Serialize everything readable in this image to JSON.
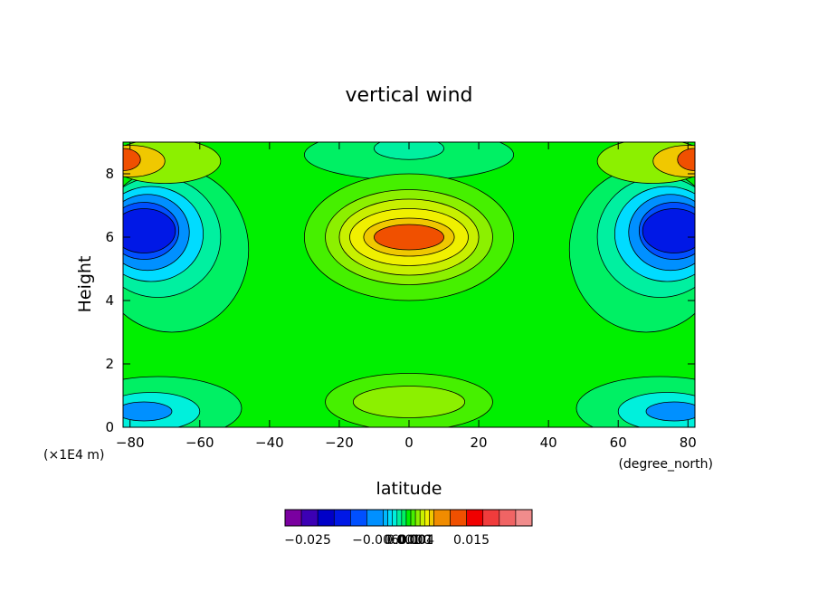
{
  "chart_data": {
    "type": "heatmap",
    "title": "vertical wind",
    "xlabel": "latitude",
    "ylabel": "Height",
    "x_units": "(degree_north)",
    "y_units": "(×1E4 m)",
    "xlim": [
      -82,
      82
    ],
    "ylim": [
      0,
      9
    ],
    "x_ticks": [
      -80,
      -60,
      -40,
      -20,
      0,
      20,
      40,
      60,
      80
    ],
    "y_ticks": [
      0,
      2,
      4,
      6,
      8
    ],
    "x_tick_labels": [
      "−80",
      "−60",
      "−40",
      "−20",
      "0",
      "20",
      "40",
      "60",
      "80"
    ],
    "y_tick_labels": [
      "0",
      "2",
      "4",
      "6",
      "8"
    ],
    "grid": false,
    "legend": "bottom",
    "colorbar": {
      "colors": [
        "#7a00a0",
        "#3c00b4",
        "#0000c8",
        "#0018e6",
        "#0050ff",
        "#0090ff",
        "#00b8ff",
        "#00dcff",
        "#00f0dc",
        "#00f0a0",
        "#00f064",
        "#00f000",
        "#46f000",
        "#8cf000",
        "#c8f000",
        "#f0f000",
        "#f0c800",
        "#f08c00",
        "#f05000",
        "#f00000",
        "#f03c3c",
        "#f06464",
        "#f08c8c"
      ],
      "tick_labels": [
        "−0.025",
        "−0.006",
        "0.004",
        "0.015"
      ],
      "overlap_labels": [
        "0.001",
        "0.0000",
        "0.001"
      ]
    },
    "features": [
      {
        "name": "deep minimum",
        "lat": -74,
        "height": 6.2,
        "value": -0.025
      },
      {
        "name": "deep minimum",
        "lat": 74,
        "height": 6.2,
        "value": -0.025
      },
      {
        "name": "maximum",
        "lat": 0,
        "height": 6.0,
        "value": 0.012
      },
      {
        "name": "maximum",
        "lat": -80,
        "height": 8.4,
        "value": 0.015
      },
      {
        "name": "maximum",
        "lat": 80,
        "height": 8.4,
        "value": 0.015
      },
      {
        "name": "weak minimum",
        "lat": -74,
        "height": 0.5,
        "value": -0.012
      },
      {
        "name": "weak minimum",
        "lat": 74,
        "height": 0.5,
        "value": -0.012
      },
      {
        "name": "weak minimum",
        "lat": 0,
        "height": 8.8,
        "value": -0.006
      }
    ]
  }
}
